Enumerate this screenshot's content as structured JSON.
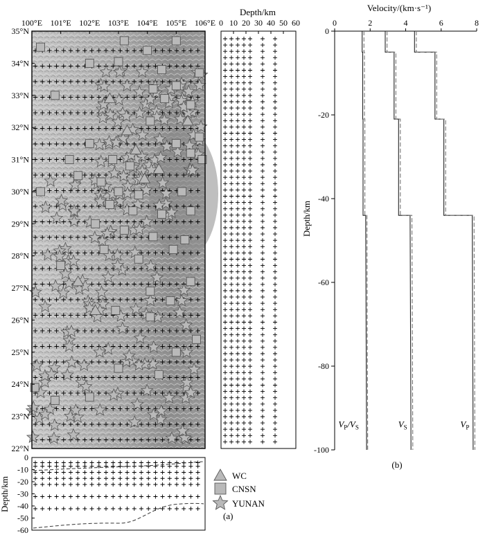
{
  "panels": {
    "a_label": "(a)",
    "b_label": "(b)"
  },
  "map": {
    "lon_ticks": [
      "100°E",
      "101°E",
      "102°E",
      "103°E",
      "104°E",
      "105°E",
      "106°E"
    ],
    "lat_ticks": [
      "35°N",
      "34°N",
      "33°N",
      "32°N",
      "31°N",
      "30°N",
      "29°N",
      "28°N",
      "27°N",
      "26°N",
      "25°N",
      "24°N",
      "23°N",
      "22°N"
    ],
    "xlim": [
      100,
      106
    ],
    "ylim": [
      22,
      35
    ]
  },
  "depth_strip": {
    "title": "Depth/km",
    "ticks": [
      "0",
      "10",
      "20",
      "30",
      "40",
      "50",
      "60"
    ],
    "grid_depths": [
      0,
      5,
      10,
      15,
      20,
      30,
      40
    ]
  },
  "profile": {
    "ylabel": "Depth/km",
    "ticks": [
      "0",
      "-10",
      "-20",
      "-30",
      "-40",
      "-50",
      "-60"
    ],
    "ylim": [
      -60,
      0
    ],
    "boundary1_color": "#333333",
    "boundary2_color": "#333333"
  },
  "legend": {
    "items": [
      {
        "label": "WC",
        "icon": "triangle-marker"
      },
      {
        "label": "CNSN",
        "icon": "square-marker"
      },
      {
        "label": "YUNAN",
        "icon": "star-marker"
      }
    ],
    "marker_fill": "#b9b9b9",
    "marker_stroke": "#555555"
  },
  "chart_data": {
    "type": "line",
    "title": "Velocity/(km·s⁻¹)",
    "xlabel": "Velocity/(km·s⁻¹)",
    "ylabel": "Depth/km",
    "xlim": [
      0,
      8
    ],
    "ylim": [
      -100,
      0
    ],
    "xticks": [
      "0",
      "2",
      "4",
      "6",
      "8"
    ],
    "yticks": [
      "0",
      "-20",
      "-40",
      "-60",
      "-80",
      "-100"
    ],
    "series": [
      {
        "name": "VP/VS",
        "label_main": "V",
        "label_sub1": "P",
        "label_mid": "/V",
        "label_sub2": "S",
        "style": "solid",
        "color": "#222222",
        "values": [
          [
            1.55,
            0
          ],
          [
            1.55,
            -5
          ],
          [
            1.58,
            -5
          ],
          [
            1.58,
            -21
          ],
          [
            1.6,
            -21
          ],
          [
            1.6,
            -44
          ],
          [
            1.75,
            -44
          ],
          [
            1.8,
            -100
          ]
        ]
      },
      {
        "name": "VP/VS reference",
        "style": "dashed",
        "color": "#777777",
        "values": [
          [
            1.65,
            0
          ],
          [
            1.65,
            -5
          ],
          [
            1.68,
            -5
          ],
          [
            1.68,
            -21
          ],
          [
            1.7,
            -21
          ],
          [
            1.7,
            -44
          ],
          [
            1.82,
            -44
          ],
          [
            1.86,
            -100
          ]
        ]
      },
      {
        "name": "VS",
        "label_main": "V",
        "label_sub1": "S",
        "style": "solid",
        "color": "#222222",
        "values": [
          [
            2.85,
            0
          ],
          [
            2.85,
            -5
          ],
          [
            3.35,
            -5
          ],
          [
            3.35,
            -21
          ],
          [
            3.6,
            -21
          ],
          [
            3.6,
            -44
          ],
          [
            4.25,
            -44
          ],
          [
            4.3,
            -100
          ]
        ]
      },
      {
        "name": "VS reference",
        "style": "dashed",
        "color": "#777777",
        "values": [
          [
            2.95,
            0
          ],
          [
            2.95,
            -5
          ],
          [
            3.45,
            -5
          ],
          [
            3.45,
            -21
          ],
          [
            3.7,
            -21
          ],
          [
            3.7,
            -44
          ],
          [
            4.35,
            -44
          ],
          [
            4.4,
            -100
          ]
        ]
      },
      {
        "name": "VP",
        "label_main": "V",
        "label_sub1": "P",
        "style": "solid",
        "color": "#222222",
        "values": [
          [
            4.5,
            0
          ],
          [
            4.5,
            -5
          ],
          [
            5.65,
            -5
          ],
          [
            5.65,
            -21
          ],
          [
            6.15,
            -21
          ],
          [
            6.15,
            -44
          ],
          [
            7.75,
            -44
          ],
          [
            7.8,
            -100
          ]
        ]
      },
      {
        "name": "VP reference",
        "style": "dashed",
        "color": "#777777",
        "values": [
          [
            4.6,
            0
          ],
          [
            4.6,
            -5
          ],
          [
            5.75,
            -5
          ],
          [
            5.75,
            -21
          ],
          [
            6.25,
            -21
          ],
          [
            6.25,
            -44
          ],
          [
            7.85,
            -44
          ],
          [
            7.9,
            -100
          ]
        ]
      }
    ]
  }
}
